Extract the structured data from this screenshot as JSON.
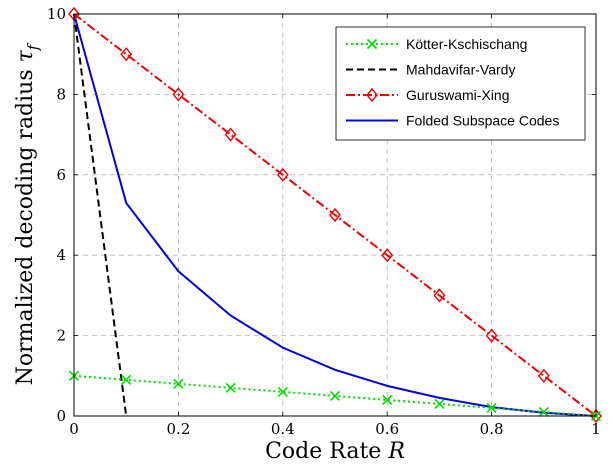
{
  "chart_data": {
    "type": "line",
    "xlabel": "Code Rate",
    "xlabel_var": "R",
    "ylabel": "Normalized decoding radius",
    "ylabel_var": "τ",
    "ylabel_sub": "f",
    "xlim": [
      0,
      1
    ],
    "ylim": [
      0,
      10
    ],
    "xticks": [
      0,
      0.2,
      0.4,
      0.6,
      0.8,
      1
    ],
    "xtick_labels": [
      "0",
      "0.2",
      "0.4",
      "0.6",
      "0.8",
      "1"
    ],
    "yticks": [
      0,
      2,
      4,
      6,
      8,
      10
    ],
    "ytick_labels": [
      "0",
      "2",
      "4",
      "6",
      "8",
      "10"
    ],
    "grid": true,
    "legend_position": "top-right",
    "series": [
      {
        "name": "Kötter-Kschischang",
        "color": "#00dd00",
        "dash": "dotted",
        "marker": "x",
        "x": [
          0,
          0.1,
          0.2,
          0.3,
          0.4,
          0.5,
          0.6,
          0.7,
          0.8,
          0.9,
          1.0
        ],
        "y": [
          1.0,
          0.9,
          0.8,
          0.7,
          0.6,
          0.5,
          0.4,
          0.3,
          0.2,
          0.1,
          0.0
        ]
      },
      {
        "name": "Mahdavifar-Vardy",
        "color": "#000000",
        "dash": "dashed",
        "marker": "none",
        "x": [
          0,
          0.1
        ],
        "y": [
          10,
          0
        ]
      },
      {
        "name": "Guruswami-Xing",
        "color": "#ee0000",
        "dash": "dashdot",
        "marker": "diamond",
        "x": [
          0,
          0.1,
          0.2,
          0.3,
          0.4,
          0.5,
          0.6,
          0.7,
          0.8,
          0.9,
          1.0
        ],
        "y": [
          10,
          9,
          8,
          7,
          6,
          5,
          4,
          3,
          2,
          1,
          0
        ]
      },
      {
        "name": "Folded Subspace Codes",
        "color": "#0000dd",
        "dash": "solid",
        "marker": "none",
        "x": [
          0,
          0.1,
          0.2,
          0.3,
          0.4,
          0.5,
          0.6,
          0.7,
          0.8,
          0.9,
          1.0
        ],
        "y": [
          10,
          5.3,
          3.6,
          2.5,
          1.7,
          1.15,
          0.75,
          0.45,
          0.22,
          0.08,
          0.0
        ]
      }
    ]
  }
}
